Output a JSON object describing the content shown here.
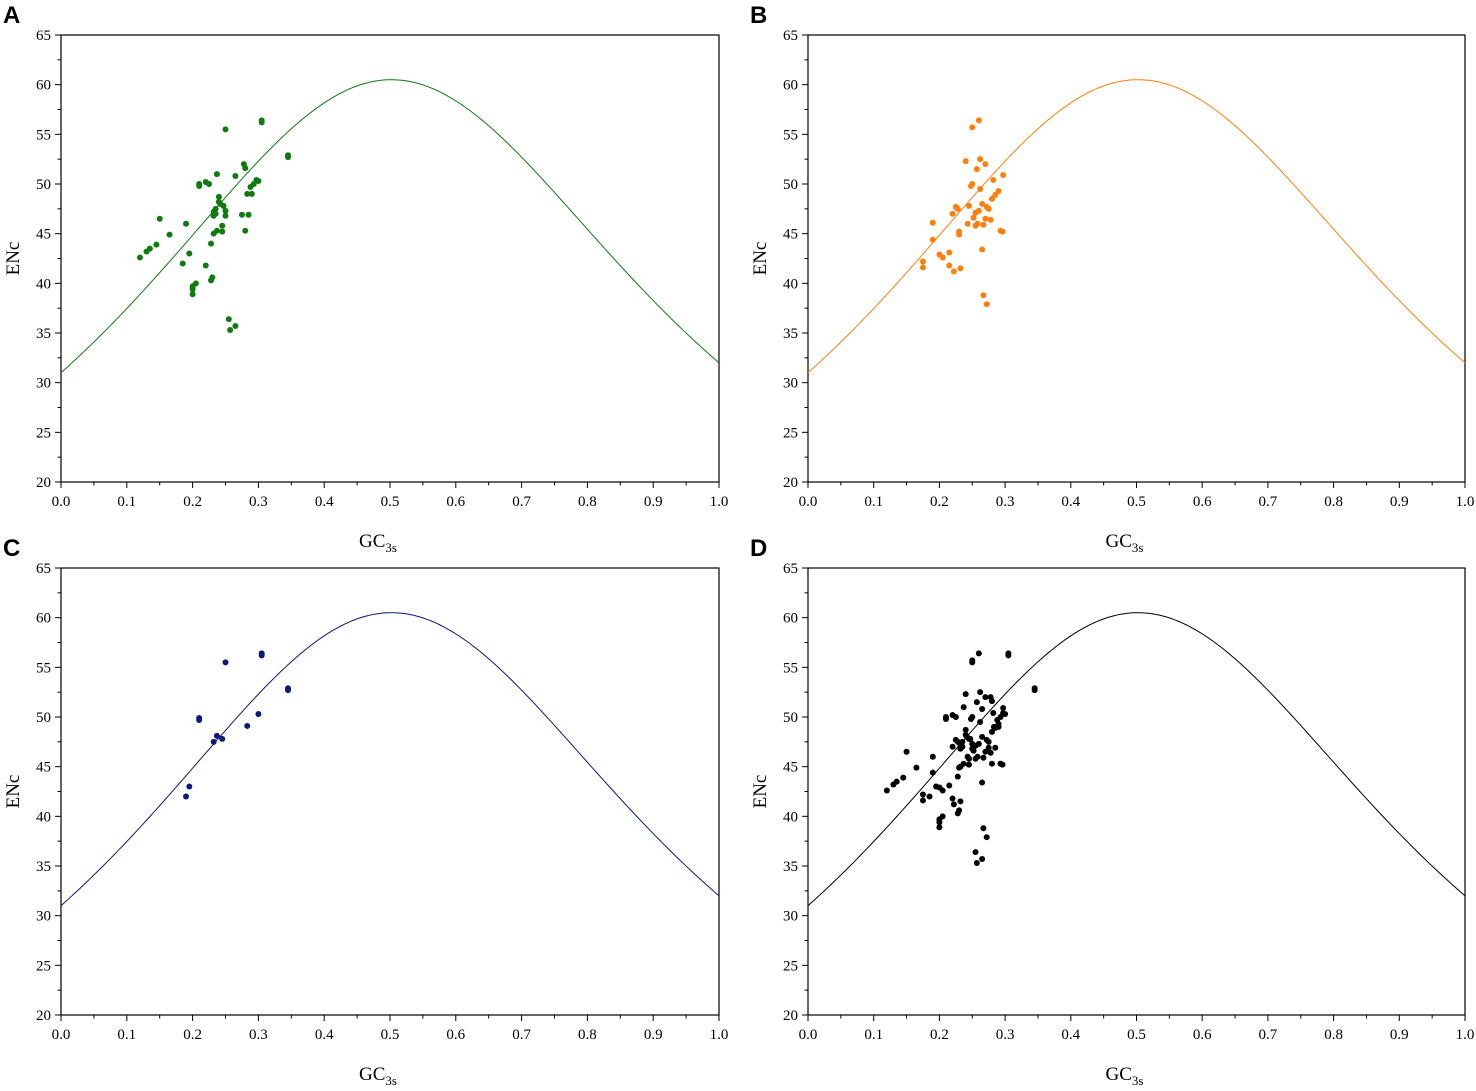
{
  "figure": {
    "expected_curve": "ENc = 2 + GC3s + 29/(GC3s^2 + (1 - GC3s)^2)"
  },
  "chart_data": [
    {
      "type": "scatter",
      "panel": "A",
      "xlabel": "GC",
      "xlabel_sub": "3s",
      "ylabel": "ENc",
      "xlim": [
        0.0,
        1.0
      ],
      "ylim": [
        20,
        65
      ],
      "xticks": [
        "0.0",
        "0.1",
        "0.2",
        "0.3",
        "0.4",
        "0.5",
        "0.6",
        "0.7",
        "0.8",
        "0.9",
        "1.0"
      ],
      "yticks": [
        "20",
        "25",
        "30",
        "35",
        "40",
        "45",
        "50",
        "55",
        "60",
        "65"
      ],
      "color": "#0f7a0f",
      "points": [
        [
          0.12,
          42.6
        ],
        [
          0.13,
          43.2
        ],
        [
          0.135,
          43.5
        ],
        [
          0.145,
          43.9
        ],
        [
          0.15,
          46.5
        ],
        [
          0.165,
          44.9
        ],
        [
          0.185,
          42.0
        ],
        [
          0.19,
          46.0
        ],
        [
          0.195,
          43.0
        ],
        [
          0.2,
          38.9
        ],
        [
          0.2,
          39.4
        ],
        [
          0.2,
          39.7
        ],
        [
          0.205,
          40.0
        ],
        [
          0.21,
          49.8
        ],
        [
          0.21,
          50.0
        ],
        [
          0.22,
          50.2
        ],
        [
          0.22,
          41.8
        ],
        [
          0.225,
          50.0
        ],
        [
          0.228,
          44.0
        ],
        [
          0.228,
          40.3
        ],
        [
          0.23,
          40.6
        ],
        [
          0.232,
          45.0
        ],
        [
          0.232,
          46.8
        ],
        [
          0.232,
          47.2
        ],
        [
          0.235,
          47.5
        ],
        [
          0.235,
          47.0
        ],
        [
          0.237,
          51.0
        ],
        [
          0.237,
          45.3
        ],
        [
          0.24,
          48.2
        ],
        [
          0.24,
          48.7
        ],
        [
          0.242,
          48.0
        ],
        [
          0.245,
          45.8
        ],
        [
          0.245,
          45.2
        ],
        [
          0.247,
          47.8
        ],
        [
          0.25,
          47.3
        ],
        [
          0.25,
          46.8
        ],
        [
          0.25,
          55.5
        ],
        [
          0.255,
          36.4
        ],
        [
          0.257,
          35.3
        ],
        [
          0.265,
          35.7
        ],
        [
          0.265,
          50.8
        ],
        [
          0.275,
          46.9
        ],
        [
          0.278,
          52.0
        ],
        [
          0.28,
          51.6
        ],
        [
          0.28,
          45.3
        ],
        [
          0.283,
          49.0
        ],
        [
          0.285,
          46.9
        ],
        [
          0.288,
          49.7
        ],
        [
          0.29,
          49.0
        ],
        [
          0.293,
          50.0
        ],
        [
          0.297,
          50.4
        ],
        [
          0.3,
          50.3
        ],
        [
          0.305,
          56.2
        ],
        [
          0.305,
          56.4
        ],
        [
          0.345,
          52.7
        ],
        [
          0.345,
          52.9
        ]
      ]
    },
    {
      "type": "scatter",
      "panel": "B",
      "xlabel": "GC",
      "xlabel_sub": "3s",
      "ylabel": "ENc",
      "xlim": [
        0.0,
        1.0
      ],
      "ylim": [
        20,
        65
      ],
      "xticks": [
        "0.0",
        "0.1",
        "0.2",
        "0.3",
        "0.4",
        "0.5",
        "0.6",
        "0.7",
        "0.8",
        "0.9",
        "1.0"
      ],
      "yticks": [
        "20",
        "25",
        "30",
        "35",
        "40",
        "45",
        "50",
        "55",
        "60",
        "65"
      ],
      "color": "#ff7f0e",
      "points": [
        [
          0.175,
          41.6
        ],
        [
          0.175,
          42.2
        ],
        [
          0.19,
          46.1
        ],
        [
          0.19,
          44.4
        ],
        [
          0.2,
          42.9
        ],
        [
          0.205,
          42.6
        ],
        [
          0.215,
          41.8
        ],
        [
          0.215,
          43.1
        ],
        [
          0.22,
          47.0
        ],
        [
          0.222,
          41.2
        ],
        [
          0.225,
          47.7
        ],
        [
          0.228,
          47.5
        ],
        [
          0.23,
          45.2
        ],
        [
          0.23,
          44.9
        ],
        [
          0.232,
          41.5
        ],
        [
          0.24,
          52.3
        ],
        [
          0.243,
          46.0
        ],
        [
          0.245,
          47.8
        ],
        [
          0.248,
          49.8
        ],
        [
          0.25,
          55.7
        ],
        [
          0.25,
          50.0
        ],
        [
          0.252,
          46.6
        ],
        [
          0.255,
          45.8
        ],
        [
          0.255,
          47.1
        ],
        [
          0.257,
          51.5
        ],
        [
          0.258,
          46.0
        ],
        [
          0.26,
          56.4
        ],
        [
          0.26,
          47.3
        ],
        [
          0.262,
          52.5
        ],
        [
          0.262,
          49.5
        ],
        [
          0.265,
          43.4
        ],
        [
          0.265,
          48.0
        ],
        [
          0.267,
          45.9
        ],
        [
          0.267,
          38.8
        ],
        [
          0.27,
          52.0
        ],
        [
          0.27,
          46.5
        ],
        [
          0.272,
          47.7
        ],
        [
          0.272,
          37.9
        ],
        [
          0.275,
          47.5
        ],
        [
          0.278,
          46.4
        ],
        [
          0.28,
          48.5
        ],
        [
          0.282,
          50.4
        ],
        [
          0.285,
          48.9
        ],
        [
          0.29,
          49.3
        ],
        [
          0.293,
          45.3
        ],
        [
          0.296,
          45.2
        ],
        [
          0.297,
          50.9
        ]
      ]
    },
    {
      "type": "scatter",
      "panel": "C",
      "xlabel": "GC",
      "xlabel_sub": "3s",
      "ylabel": "ENc",
      "xlim": [
        0.0,
        1.0
      ],
      "ylim": [
        20,
        65
      ],
      "xticks": [
        "0.0",
        "0.1",
        "0.2",
        "0.3",
        "0.4",
        "0.5",
        "0.6",
        "0.7",
        "0.8",
        "0.9",
        "1.0"
      ],
      "yticks": [
        "20",
        "25",
        "30",
        "35",
        "40",
        "45",
        "50",
        "55",
        "60",
        "65"
      ],
      "color": "#0a1a78",
      "points": [
        [
          0.19,
          42.0
        ],
        [
          0.195,
          43.0
        ],
        [
          0.21,
          49.7
        ],
        [
          0.21,
          49.9
        ],
        [
          0.232,
          47.5
        ],
        [
          0.237,
          48.1
        ],
        [
          0.245,
          47.8
        ],
        [
          0.25,
          55.5
        ],
        [
          0.283,
          49.1
        ],
        [
          0.3,
          50.3
        ],
        [
          0.305,
          56.2
        ],
        [
          0.305,
          56.4
        ],
        [
          0.345,
          52.7
        ],
        [
          0.345,
          52.9
        ]
      ]
    },
    {
      "type": "scatter",
      "panel": "D",
      "xlabel": "GC",
      "xlabel_sub": "3s",
      "ylabel": "ENc",
      "xlim": [
        0.0,
        1.0
      ],
      "ylim": [
        20,
        65
      ],
      "xticks": [
        "0.0",
        "0.1",
        "0.2",
        "0.3",
        "0.4",
        "0.5",
        "0.6",
        "0.7",
        "0.8",
        "0.9",
        "1.0"
      ],
      "yticks": [
        "20",
        "25",
        "30",
        "35",
        "40",
        "45",
        "50",
        "55",
        "60",
        "65"
      ],
      "color": "#000000",
      "points": [
        [
          0.12,
          42.6
        ],
        [
          0.13,
          43.2
        ],
        [
          0.135,
          43.5
        ],
        [
          0.145,
          43.9
        ],
        [
          0.15,
          46.5
        ],
        [
          0.165,
          44.9
        ],
        [
          0.185,
          42.0
        ],
        [
          0.19,
          46.0
        ],
        [
          0.195,
          43.0
        ],
        [
          0.2,
          38.9
        ],
        [
          0.2,
          39.4
        ],
        [
          0.2,
          39.7
        ],
        [
          0.205,
          40.0
        ],
        [
          0.21,
          49.8
        ],
        [
          0.21,
          50.0
        ],
        [
          0.22,
          50.2
        ],
        [
          0.22,
          41.8
        ],
        [
          0.225,
          50.0
        ],
        [
          0.228,
          44.0
        ],
        [
          0.228,
          40.3
        ],
        [
          0.23,
          40.6
        ],
        [
          0.232,
          45.0
        ],
        [
          0.232,
          46.8
        ],
        [
          0.232,
          47.2
        ],
        [
          0.235,
          47.5
        ],
        [
          0.235,
          47.0
        ],
        [
          0.237,
          51.0
        ],
        [
          0.237,
          45.3
        ],
        [
          0.24,
          48.2
        ],
        [
          0.24,
          48.7
        ],
        [
          0.242,
          48.0
        ],
        [
          0.245,
          45.8
        ],
        [
          0.245,
          45.2
        ],
        [
          0.247,
          47.8
        ],
        [
          0.25,
          47.3
        ],
        [
          0.25,
          46.8
        ],
        [
          0.25,
          55.5
        ],
        [
          0.255,
          36.4
        ],
        [
          0.257,
          35.3
        ],
        [
          0.265,
          35.7
        ],
        [
          0.265,
          50.8
        ],
        [
          0.275,
          46.9
        ],
        [
          0.278,
          52.0
        ],
        [
          0.28,
          51.6
        ],
        [
          0.28,
          45.3
        ],
        [
          0.283,
          49.0
        ],
        [
          0.285,
          46.9
        ],
        [
          0.288,
          49.7
        ],
        [
          0.29,
          49.0
        ],
        [
          0.293,
          50.0
        ],
        [
          0.297,
          50.4
        ],
        [
          0.3,
          50.3
        ],
        [
          0.305,
          56.2
        ],
        [
          0.305,
          56.4
        ],
        [
          0.345,
          52.7
        ],
        [
          0.345,
          52.9
        ],
        [
          0.175,
          41.6
        ],
        [
          0.175,
          42.2
        ],
        [
          0.19,
          44.4
        ],
        [
          0.2,
          42.9
        ],
        [
          0.205,
          42.6
        ],
        [
          0.215,
          43.1
        ],
        [
          0.22,
          47.0
        ],
        [
          0.222,
          41.2
        ],
        [
          0.225,
          47.7
        ],
        [
          0.228,
          47.5
        ],
        [
          0.23,
          44.9
        ],
        [
          0.232,
          41.5
        ],
        [
          0.24,
          52.3
        ],
        [
          0.243,
          46.0
        ],
        [
          0.245,
          47.8
        ],
        [
          0.248,
          49.8
        ],
        [
          0.25,
          55.7
        ],
        [
          0.25,
          50.0
        ],
        [
          0.252,
          46.6
        ],
        [
          0.255,
          45.8
        ],
        [
          0.255,
          47.1
        ],
        [
          0.257,
          51.5
        ],
        [
          0.258,
          46.0
        ],
        [
          0.26,
          56.4
        ],
        [
          0.26,
          47.3
        ],
        [
          0.262,
          52.5
        ],
        [
          0.262,
          49.5
        ],
        [
          0.265,
          43.4
        ],
        [
          0.265,
          48.0
        ],
        [
          0.267,
          45.9
        ],
        [
          0.267,
          38.8
        ],
        [
          0.27,
          52.0
        ],
        [
          0.27,
          46.5
        ],
        [
          0.272,
          47.7
        ],
        [
          0.272,
          37.9
        ],
        [
          0.275,
          47.5
        ],
        [
          0.278,
          46.4
        ],
        [
          0.28,
          48.5
        ],
        [
          0.282,
          50.4
        ],
        [
          0.285,
          48.9
        ],
        [
          0.29,
          49.3
        ],
        [
          0.293,
          45.3
        ],
        [
          0.296,
          45.2
        ],
        [
          0.297,
          50.9
        ]
      ]
    }
  ]
}
